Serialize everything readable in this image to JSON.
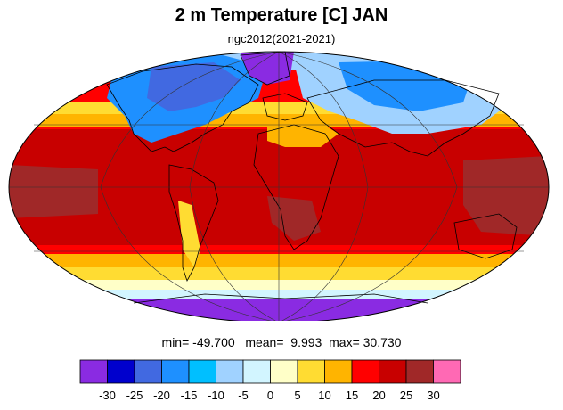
{
  "title": "2 m Temperature [C] JAN",
  "subtitle": "ngc2012(2021-2021)",
  "stats": {
    "min_label": "min=",
    "min_value": "-49.700",
    "mean_label": "mean=",
    "mean_value": "9.993",
    "max_label": "max=",
    "max_value": "30.730"
  },
  "colorbar": {
    "colors": [
      "#8a2be2",
      "#0000cd",
      "#4169e1",
      "#1e90ff",
      "#00bfff",
      "#a0d2ff",
      "#d2f5ff",
      "#ffffc8",
      "#ffdc32",
      "#ffb400",
      "#ff0000",
      "#c80000",
      "#a02828",
      "#ff69b4"
    ],
    "ticks": [
      "-30",
      "-25",
      "-20",
      "-15",
      "-10",
      "-5",
      "0",
      "5",
      "10",
      "15",
      "20",
      "25",
      "30"
    ]
  },
  "map": {
    "projection": "mollweide",
    "palette": {
      "polar": "#8a2be2",
      "very_cold": "#4169e1",
      "cold": "#1e90ff",
      "cool": "#a0d2ff",
      "cool_pale": "#d2f5ff",
      "mild": "#ffffc8",
      "warm": "#ffdc32",
      "warmer": "#ffb400",
      "hot": "#ff0000",
      "very_hot": "#c80000",
      "hottest": "#a02828",
      "land_outline": "#000000",
      "grid": "#333333"
    }
  }
}
